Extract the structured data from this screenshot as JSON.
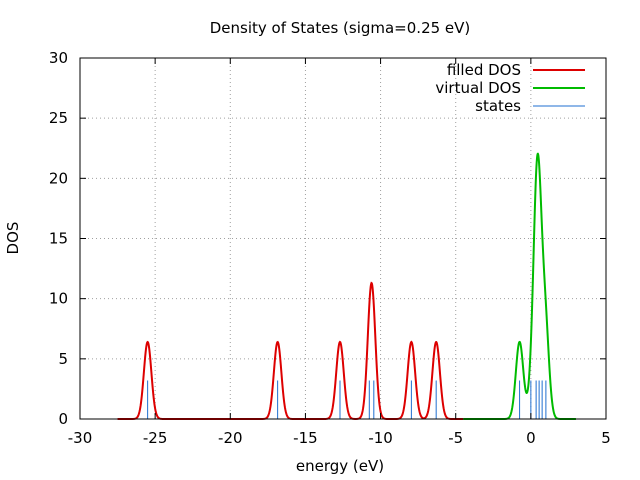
{
  "chart_data": {
    "type": "line",
    "title": "Density of States (sigma=0.25 eV)",
    "xlabel": "energy (eV)",
    "ylabel": "DOS",
    "xlim": [
      -30,
      5
    ],
    "ylim": [
      0,
      30
    ],
    "xticks": [
      -30,
      -25,
      -20,
      -15,
      -10,
      -5,
      0,
      5
    ],
    "yticks": [
      0,
      5,
      10,
      15,
      20,
      25,
      30
    ],
    "xtick_labels": [
      "-30",
      "-25",
      "-20",
      "-15",
      "-10",
      "-5",
      "0",
      "5"
    ],
    "ytick_labels": [
      "0",
      "5",
      "10",
      "15",
      "20",
      "25",
      "30"
    ],
    "grid": true,
    "legend_position": "top-right",
    "sigma": 0.25,
    "series": [
      {
        "name": "filled DOS",
        "color": "#dd0000",
        "range": [
          -27.5,
          -4.5
        ],
        "peaks": [
          {
            "x": -25.5,
            "y": 6.4
          },
          {
            "x": -16.85,
            "y": 6.4
          },
          {
            "x": -12.7,
            "y": 6.4
          },
          {
            "x": -10.6,
            "y": 11.3
          },
          {
            "x": -7.95,
            "y": 6.4
          },
          {
            "x": -6.3,
            "y": 6.4
          }
        ]
      },
      {
        "name": "virtual DOS",
        "color": "#00bb00",
        "range": [
          -4.5,
          3.0
        ],
        "peaks": [
          {
            "x": -0.75,
            "y": 6.4
          },
          {
            "x": 0.1,
            "y": 2.5
          },
          {
            "x": 0.45,
            "y": 20.0
          },
          {
            "x": 0.95,
            "y": 8.0
          }
        ]
      },
      {
        "name": "states",
        "color": "#1f6fd0",
        "type": "impulse",
        "x": [
          -25.5,
          -16.85,
          -12.7,
          -10.75,
          -10.45,
          -7.95,
          -6.3,
          -0.75,
          0.0,
          0.35,
          0.55,
          0.75,
          1.0
        ],
        "y": [
          3.2,
          3.2,
          3.2,
          3.2,
          3.2,
          3.2,
          3.2,
          3.2,
          3.2,
          3.2,
          3.2,
          3.2,
          3.2
        ]
      }
    ]
  }
}
